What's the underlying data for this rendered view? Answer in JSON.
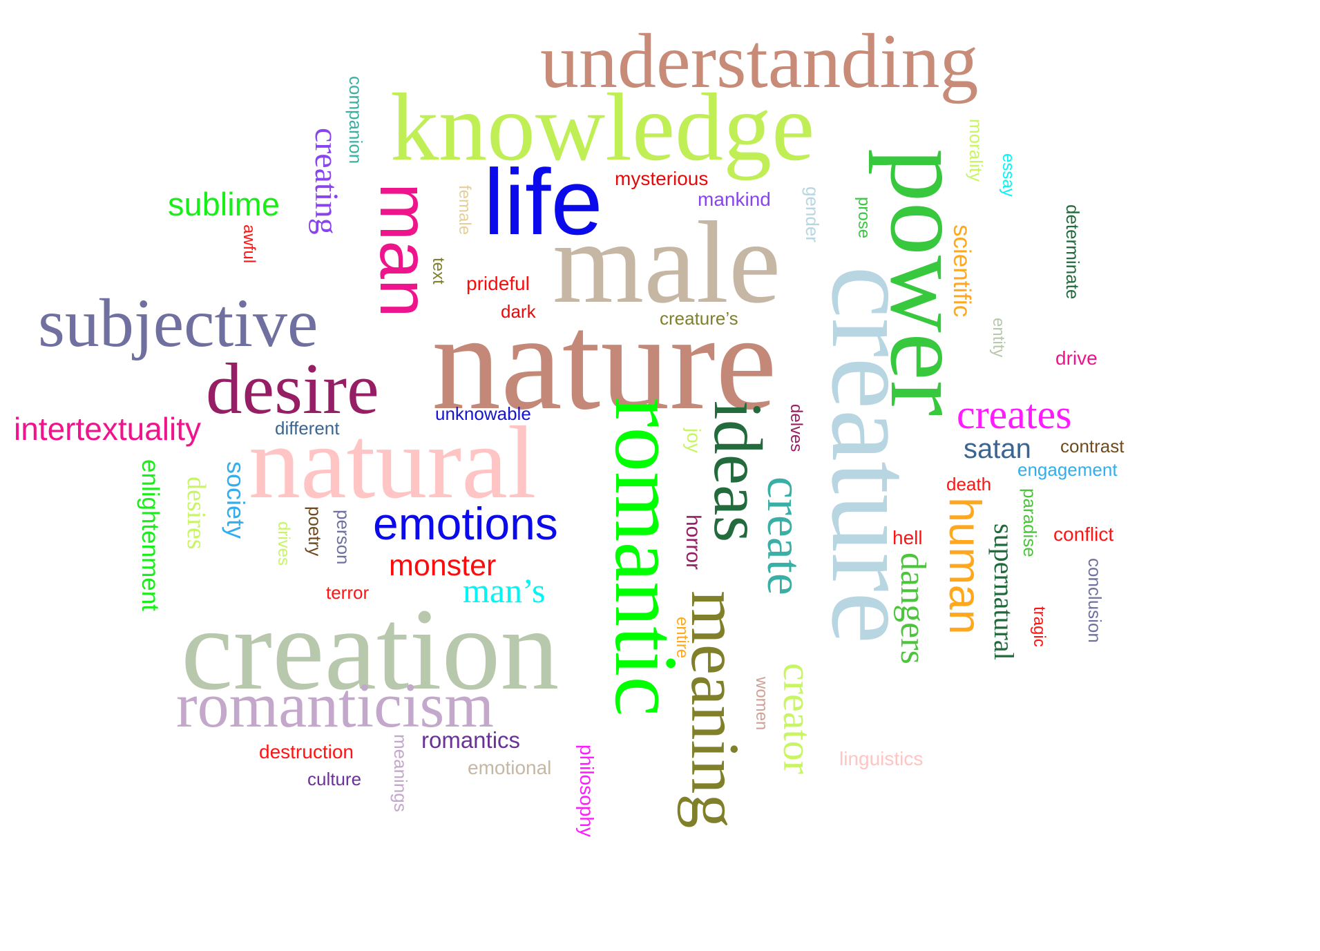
{
  "words": {
    "understanding": {
      "text": "understanding",
      "color": "#C78B78"
    },
    "knowledge": {
      "text": "knowledge",
      "color": "#BFEE55"
    },
    "power": {
      "text": "power",
      "color": "#38C83E"
    },
    "creature": {
      "text": "creature",
      "color": "#B8D6E2"
    },
    "male": {
      "text": "male",
      "color": "#C6B7A5"
    },
    "nature": {
      "text": "nature",
      "color": "#C48878"
    },
    "life": {
      "text": "life",
      "color": "#0A0AEA"
    },
    "man": {
      "text": "man",
      "color": "#EE148C"
    },
    "subjective": {
      "text": "subjective",
      "color": "#7070A0"
    },
    "desire": {
      "text": "desire",
      "color": "#961E64"
    },
    "natural": {
      "text": "natural",
      "color": "#FFC4C4"
    },
    "romantic": {
      "text": "romantic",
      "color": "#00FF00"
    },
    "ideas": {
      "text": "ideas",
      "color": "#236A3C"
    },
    "meaning": {
      "text": "meaning",
      "color": "#80802A"
    },
    "create": {
      "text": "create",
      "color": "#3AAFA6"
    },
    "creator": {
      "text": "creator",
      "color": "#C8F564"
    },
    "creation": {
      "text": "creation",
      "color": "#B8C8AC"
    },
    "romanticism": {
      "text": "romanticism",
      "color": "#C4A8CC"
    },
    "human": {
      "text": "human",
      "color": "#FFA81E"
    },
    "dangers": {
      "text": "dangers",
      "color": "#4CC43C"
    },
    "emotions": {
      "text": "emotions",
      "color": "#0A0AEA"
    },
    "monster": {
      "text": "monster",
      "color": "#FF0A0A"
    },
    "mans": {
      "text": "man’s",
      "color": "#00F5F5"
    },
    "creates": {
      "text": "creates",
      "color": "#FF1AFF"
    },
    "supernatural": {
      "text": "supernatural",
      "color": "#1E6A3A"
    },
    "intertextuality": {
      "text": "intertextuality",
      "color": "#F0148C"
    },
    "sublime": {
      "text": "sublime",
      "color": "#18EE18"
    },
    "creating": {
      "text": "creating",
      "color": "#8844EE"
    },
    "scientific": {
      "text": "scientific",
      "color": "#FFA81E"
    },
    "enlightenment": {
      "text": "enlightenment",
      "color": "#18EE18"
    },
    "desires": {
      "text": "desires",
      "color": "#C8F564"
    },
    "society": {
      "text": "society",
      "color": "#32AEEE"
    },
    "satan": {
      "text": "satan",
      "color": "#3C6490"
    },
    "joy": {
      "text": "joy",
      "color": "#C8F564"
    },
    "horror": {
      "text": "horror",
      "color": "#961E64"
    },
    "romantics": {
      "text": "romantics",
      "color": "#6A3296"
    },
    "companion": {
      "text": "companion",
      "color": "#3AAFA6"
    },
    "mysterious": {
      "text": "mysterious",
      "color": "#E60A0A"
    },
    "mankind": {
      "text": "mankind",
      "color": "#8844EE"
    },
    "female": {
      "text": "female",
      "color": "#E6CF96"
    },
    "gender": {
      "text": "gender",
      "color": "#B8D6E2"
    },
    "prose": {
      "text": "prose",
      "color": "#38C83E"
    },
    "morality": {
      "text": "morality",
      "color": "#C8F564"
    },
    "essay": {
      "text": "essay",
      "color": "#00F5F5"
    },
    "determinate": {
      "text": "determinate",
      "color": "#236A3C"
    },
    "awful": {
      "text": "awful",
      "color": "#FF1414"
    },
    "text": {
      "text": "text",
      "color": "#80802A"
    },
    "prideful": {
      "text": "prideful",
      "color": "#FF0A0A"
    },
    "dark": {
      "text": "dark",
      "color": "#E60A0A"
    },
    "creatures": {
      "text": "creature’s",
      "color": "#80802A"
    },
    "entity": {
      "text": "entity",
      "color": "#B8C8AC"
    },
    "drive": {
      "text": "drive",
      "color": "#EE148C"
    },
    "different": {
      "text": "different",
      "color": "#3C6490"
    },
    "unknowable": {
      "text": "unknowable",
      "color": "#1414D2"
    },
    "delves": {
      "text": "delves",
      "color": "#961E64"
    },
    "contrast": {
      "text": "contrast",
      "color": "#6E4A1E"
    },
    "engagement": {
      "text": "engagement",
      "color": "#32AEEE"
    },
    "death": {
      "text": "death",
      "color": "#FF1414"
    },
    "paradise": {
      "text": "paradise",
      "color": "#4CC43C"
    },
    "hell": {
      "text": "hell",
      "color": "#FF1414"
    },
    "conflict": {
      "text": "conflict",
      "color": "#FF1414"
    },
    "conclusion": {
      "text": "conclusion",
      "color": "#7070A0"
    },
    "tragic": {
      "text": "tragic",
      "color": "#FF1414"
    },
    "poetry": {
      "text": "poetry",
      "color": "#6E4A1E"
    },
    "person": {
      "text": "person",
      "color": "#7070A0"
    },
    "drives": {
      "text": "drives",
      "color": "#C8F564"
    },
    "terror": {
      "text": "terror",
      "color": "#FF1414"
    },
    "entire": {
      "text": "entire",
      "color": "#FFA81E"
    },
    "women": {
      "text": "women",
      "color": "#D2A096"
    },
    "linguistics": {
      "text": "linguistics",
      "color": "#FFC4C4"
    },
    "destruction": {
      "text": "destruction",
      "color": "#FF1414"
    },
    "culture": {
      "text": "culture",
      "color": "#6A3296"
    },
    "meanings": {
      "text": "meanings",
      "color": "#C4A8CC"
    },
    "emotional": {
      "text": "emotional",
      "color": "#C6B7A5"
    },
    "philosophy": {
      "text": "philosophy",
      "color": "#FF1AFF"
    }
  }
}
